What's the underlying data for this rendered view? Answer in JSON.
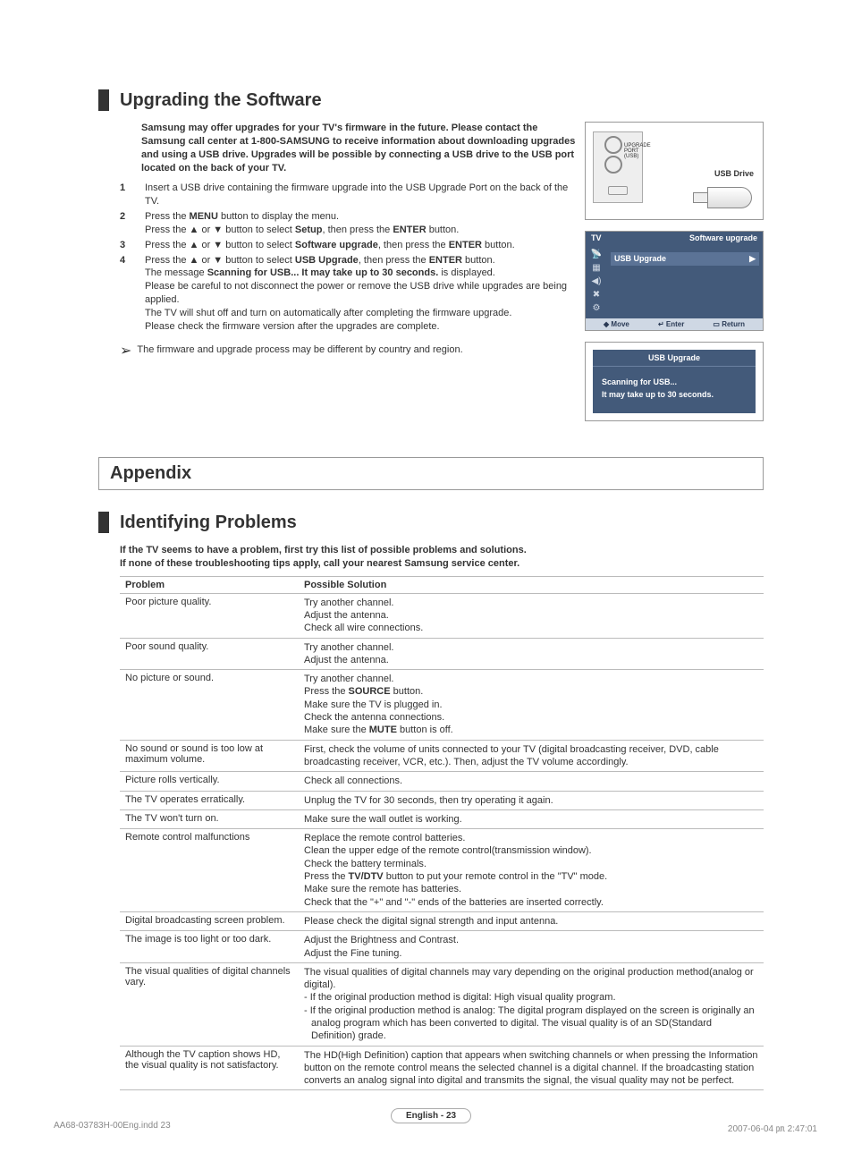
{
  "section1": {
    "title": "Upgrading the Software",
    "intro": "Samsung may offer upgrades for your TV's firmware in the future. Please contact the Samsung call center at 1-800-SAMSUNG to receive information about downloading upgrades and using a USB drive. Upgrades will be possible by connecting a USB drive to the USB port located on the back of your TV.",
    "steps": {
      "s1": "Insert a USB drive containing the firmware upgrade into the USB Upgrade Port on the back of the TV.",
      "s2a": "Press the ",
      "s2b": "MENU",
      "s2c": " button to display the menu.",
      "s2d": "Press the ▲ or ▼ button to select ",
      "s2e": "Setup",
      "s2f": ", then press the ",
      "s2g": "ENTER",
      "s2h": " button.",
      "s3a": "Press the ▲ or ▼ button to select ",
      "s3b": "Software upgrade",
      "s3c": ", then press the ",
      "s3d": "ENTER",
      "s3e": " button.",
      "s4a": "Press the ▲ or ▼ button to select ",
      "s4b": "USB Upgrade",
      "s4c": ", then press the ",
      "s4d": "ENTER",
      "s4e": " button.",
      "s4f": "The message ",
      "s4g": "Scanning for USB... It may take up to 30 seconds.",
      "s4h": " is displayed.",
      "s4i": "Please be careful to not disconnect the power or remove the USB drive while upgrades are being applied.",
      "s4j": "The TV will shut off and turn on automatically after completing the firmware upgrade.",
      "s4k": "Please check the firmware version after the upgrades are complete."
    },
    "note": "The firmware and upgrade process may be different by country and region."
  },
  "usb_fig": {
    "label": "USB Drive",
    "port_label1": "UPGRADE",
    "port_label2": "PORT",
    "port_label3": "(USB)"
  },
  "menu_fig": {
    "top_left": "TV",
    "top_right": "Software upgrade",
    "selected": "USB Upgrade",
    "arrow": "▶",
    "move": "Move",
    "enter": "Enter",
    "return": "Return",
    "move_icon": "◆",
    "enter_icon": "↵",
    "return_icon": "▭"
  },
  "scan_fig": {
    "title": "USB Upgrade",
    "line1": "Scanning for USB...",
    "line2": "It may take up to 30 seconds."
  },
  "appendix": "Appendix",
  "section2": {
    "title": "Identifying Problems",
    "intro1": "If the TV seems to have a problem, first try this list of possible problems and solutions.",
    "intro2": "If none of these troubleshooting tips apply, call your nearest Samsung service center.",
    "col1": "Problem",
    "col2": "Possible Solution",
    "rows": [
      {
        "p": "Poor picture quality.",
        "s": [
          "Try another channel.",
          "Adjust the antenna.",
          "Check all wire connections."
        ]
      },
      {
        "p": "Poor sound quality.",
        "s": [
          "Try another channel.",
          "Adjust the antenna."
        ]
      },
      {
        "p": "No picture or sound.",
        "s": [
          "Try another channel.",
          "Press the <b>SOURCE</b> button.",
          "Make sure the TV is plugged in.",
          "Check the antenna connections.",
          "Make sure the <b>MUTE</b> button is off."
        ]
      },
      {
        "p": "No sound or sound is too low at maximum volume.",
        "s": [
          "First, check the volume of units connected to your TV (digital broadcasting receiver, DVD, cable broadcasting receiver, VCR, etc.). Then, adjust the TV volume accordingly."
        ]
      },
      {
        "p": "Picture rolls vertically.",
        "s": [
          "Check all connections."
        ]
      },
      {
        "p": "The TV operates erratically.",
        "s": [
          "Unplug the TV for 30 seconds, then try operating it again."
        ]
      },
      {
        "p": "The TV won't turn on.",
        "s": [
          "Make sure the wall outlet is working."
        ]
      },
      {
        "p": "Remote control malfunctions",
        "s": [
          "Replace the remote control batteries.",
          "Clean the upper edge of the remote control(transmission window).",
          "Check the battery terminals.",
          "Press the <b>TV/DTV</b> button to put your remote control in the \"TV\" mode.",
          "Make sure the remote has batteries.",
          "Check that the \"+\" and \"-\" ends of the batteries are inserted correctly."
        ]
      },
      {
        "p": "Digital broadcasting screen problem.",
        "s": [
          "Please check the digital signal strength and input antenna."
        ]
      },
      {
        "p": "The image is too light or too dark.",
        "s": [
          "Adjust the Brightness and Contrast.",
          "Adjust the Fine tuning."
        ]
      },
      {
        "p": "The visual qualities of digital channels vary.",
        "s": [
          "The visual qualities of digital channels may vary depending on the original production method(analog or digital).",
          "-  If the original production method is digital: High visual quality program.",
          "-  If the original production method is analog: The digital program displayed on the screen is originally an analog program which has been converted to digital. The visual quality is of an SD(Standard Definition) grade."
        ]
      },
      {
        "p": "Although the TV caption shows HD, the visual quality is not satisfactory.",
        "s": [
          "The HD(High Definition) caption that appears when switching channels or when pressing the Information button on the remote control means the selected channel is a digital channel. If the broadcasting station converts an analog signal into digital and transmits the signal, the visual quality may not be perfect."
        ]
      }
    ]
  },
  "page_number": "English - 23",
  "footer": {
    "left": "AA68-03783H-00Eng.indd   23",
    "right": "2007-06-04   ㏘ 2:47:01"
  },
  "nums": {
    "n1": "1",
    "n2": "2",
    "n3": "3",
    "n4": "4"
  }
}
